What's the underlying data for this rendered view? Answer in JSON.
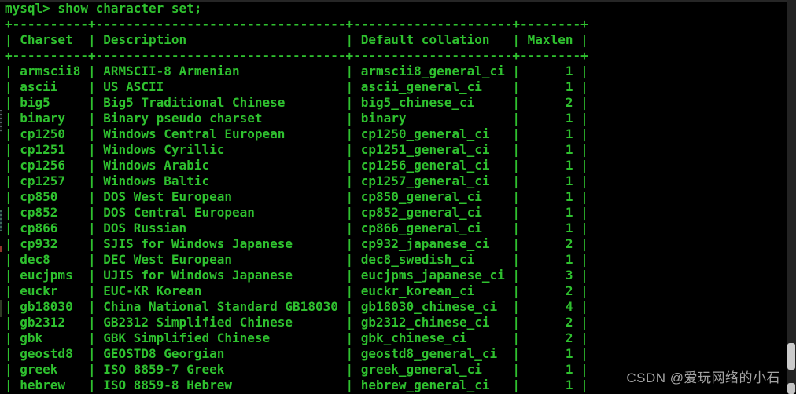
{
  "terminal": {
    "prompt": "mysql>",
    "command": "show character set;",
    "text_color": "#2fc12f",
    "background_color": "#000000"
  },
  "table": {
    "headers": [
      "Charset",
      "Description",
      "Default collation",
      "Maxlen"
    ],
    "columns": [
      "charset",
      "description",
      "collation",
      "maxlen"
    ],
    "rows": [
      {
        "charset": "armscii8",
        "description": "ARMSCII-8 Armenian",
        "collation": "armscii8_general_ci",
        "maxlen": 1
      },
      {
        "charset": "ascii",
        "description": "US ASCII",
        "collation": "ascii_general_ci",
        "maxlen": 1
      },
      {
        "charset": "big5",
        "description": "Big5 Traditional Chinese",
        "collation": "big5_chinese_ci",
        "maxlen": 2
      },
      {
        "charset": "binary",
        "description": "Binary pseudo charset",
        "collation": "binary",
        "maxlen": 1
      },
      {
        "charset": "cp1250",
        "description": "Windows Central European",
        "collation": "cp1250_general_ci",
        "maxlen": 1
      },
      {
        "charset": "cp1251",
        "description": "Windows Cyrillic",
        "collation": "cp1251_general_ci",
        "maxlen": 1
      },
      {
        "charset": "cp1256",
        "description": "Windows Arabic",
        "collation": "cp1256_general_ci",
        "maxlen": 1
      },
      {
        "charset": "cp1257",
        "description": "Windows Baltic",
        "collation": "cp1257_general_ci",
        "maxlen": 1
      },
      {
        "charset": "cp850",
        "description": "DOS West European",
        "collation": "cp850_general_ci",
        "maxlen": 1
      },
      {
        "charset": "cp852",
        "description": "DOS Central European",
        "collation": "cp852_general_ci",
        "maxlen": 1
      },
      {
        "charset": "cp866",
        "description": "DOS Russian",
        "collation": "cp866_general_ci",
        "maxlen": 1
      },
      {
        "charset": "cp932",
        "description": "SJIS for Windows Japanese",
        "collation": "cp932_japanese_ci",
        "maxlen": 2
      },
      {
        "charset": "dec8",
        "description": "DEC West European",
        "collation": "dec8_swedish_ci",
        "maxlen": 1
      },
      {
        "charset": "eucjpms",
        "description": "UJIS for Windows Japanese",
        "collation": "eucjpms_japanese_ci",
        "maxlen": 3
      },
      {
        "charset": "euckr",
        "description": "EUC-KR Korean",
        "collation": "euckr_korean_ci",
        "maxlen": 2
      },
      {
        "charset": "gb18030",
        "description": "China National Standard GB18030",
        "collation": "gb18030_chinese_ci",
        "maxlen": 4
      },
      {
        "charset": "gb2312",
        "description": "GB2312 Simplified Chinese",
        "collation": "gb2312_chinese_ci",
        "maxlen": 2
      },
      {
        "charset": "gbk",
        "description": "GBK Simplified Chinese",
        "collation": "gbk_chinese_ci",
        "maxlen": 2
      },
      {
        "charset": "geostd8",
        "description": "GEOSTD8 Georgian",
        "collation": "geostd8_general_ci",
        "maxlen": 1
      },
      {
        "charset": "greek",
        "description": "ISO 8859-7 Greek",
        "collation": "greek_general_ci",
        "maxlen": 1
      },
      {
        "charset": "hebrew",
        "description": "ISO 8859-8 Hebrew",
        "collation": "hebrew_general_ci",
        "maxlen": 1
      }
    ]
  },
  "watermark": {
    "text": "CSDN @爱玩网络的小石",
    "color": "#a3a3a3"
  }
}
